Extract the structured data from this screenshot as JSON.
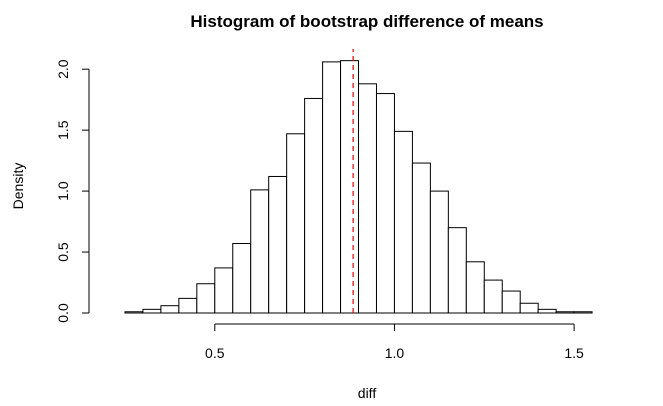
{
  "chart_data": {
    "type": "bar",
    "title": "Histogram of bootstrap difference of means",
    "xlabel": "diff",
    "ylabel": "Density",
    "bin_width": 0.05,
    "bin_starts": [
      0.2,
      0.25,
      0.3,
      0.35,
      0.4,
      0.45,
      0.5,
      0.55,
      0.6,
      0.65,
      0.7,
      0.75,
      0.8,
      0.85,
      0.9,
      0.95,
      1.0,
      1.05,
      1.1,
      1.15,
      1.2,
      1.25,
      1.3,
      1.35,
      1.4,
      1.45,
      1.5,
      1.55,
      1.6
    ],
    "values": [
      0.0,
      0.01,
      0.03,
      0.06,
      0.12,
      0.24,
      0.37,
      0.57,
      1.01,
      1.12,
      1.47,
      1.76,
      2.06,
      2.07,
      1.88,
      1.8,
      1.49,
      1.23,
      1.0,
      0.7,
      0.42,
      0.27,
      0.18,
      0.08,
      0.03,
      0.01,
      0.01,
      0.0,
      0.0
    ],
    "xlim": [
      0.2,
      1.65
    ],
    "ylim": [
      0,
      2.1
    ],
    "x_ticks": [
      0.5,
      1.0,
      1.5
    ],
    "x_tick_labels": [
      "0.5",
      "1.0",
      "1.5"
    ],
    "y_ticks": [
      0.0,
      0.5,
      1.0,
      1.5,
      2.0
    ],
    "y_tick_labels": [
      "0.0",
      "0.5",
      "1.0",
      "1.5",
      "2.0"
    ],
    "reference_line": {
      "x": 0.885,
      "color": "#e00000",
      "style": "dashed"
    },
    "grid": false,
    "legend": false
  }
}
